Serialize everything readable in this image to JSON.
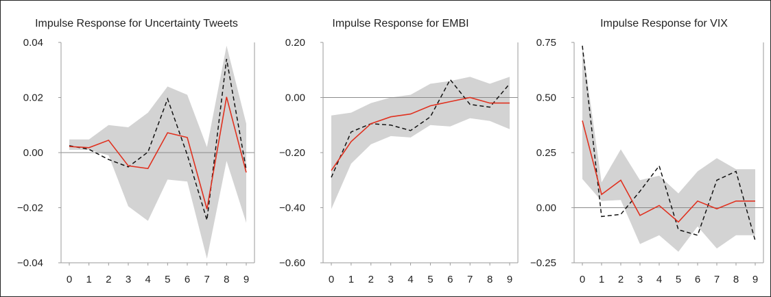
{
  "chart_data": [
    {
      "type": "line",
      "title": "Impulse Response for Uncertainty Tweets",
      "x": [
        0,
        1,
        2,
        3,
        4,
        5,
        6,
        7,
        8,
        9
      ],
      "ylim": [
        -0.04,
        0.04
      ],
      "yticks": [
        -0.04,
        -0.02,
        0.0,
        0.02,
        0.04
      ],
      "ytick_labels": [
        "−0.04",
        "−0.02",
        "0.00",
        "0.02",
        "0.04"
      ],
      "xtick_labels": [
        "0",
        "1",
        "2",
        "3",
        "4",
        "5",
        "6",
        "7",
        "8",
        "9"
      ],
      "grid": false,
      "series": [
        {
          "role": "response",
          "style": "solid",
          "color": "#e0301e",
          "values": [
            0.0022,
            0.0018,
            0.0045,
            -0.0048,
            -0.0058,
            0.0072,
            0.0055,
            -0.0205,
            0.0202,
            -0.0072
          ]
        },
        {
          "role": "comparison",
          "style": "dashed",
          "color": "#111111",
          "values": [
            0.0025,
            0.0012,
            -0.0025,
            -0.0052,
            0.0002,
            0.0195,
            -0.0008,
            -0.0245,
            0.034,
            -0.0062
          ]
        },
        {
          "role": "band_upper",
          "style": "fill",
          "color": "#d3d3d3",
          "values": [
            0.0048,
            0.0048,
            0.01,
            0.0092,
            0.0145,
            0.024,
            0.021,
            0.002,
            0.0388,
            0.0105
          ]
        },
        {
          "role": "band_lower",
          "style": "fill",
          "color": "#d3d3d3",
          "values": [
            0.001,
            0.001,
            -0.001,
            -0.0195,
            -0.0248,
            -0.0098,
            -0.0105,
            -0.0385,
            -0.003,
            -0.0255
          ]
        }
      ]
    },
    {
      "type": "line",
      "title": "Impulse Response for EMBI",
      "x": [
        0,
        1,
        2,
        3,
        4,
        5,
        6,
        7,
        8,
        9
      ],
      "ylim": [
        -0.6,
        0.2
      ],
      "yticks": [
        -0.6,
        -0.4,
        -0.2,
        0.0,
        0.2
      ],
      "ytick_labels": [
        "−0.60",
        "−0.40",
        "−0.20",
        "0.00",
        "0.20"
      ],
      "xtick_labels": [
        "0",
        "1",
        "2",
        "3",
        "4",
        "5",
        "6",
        "7",
        "8",
        "9"
      ],
      "grid": false,
      "series": [
        {
          "role": "response",
          "style": "solid",
          "color": "#e0301e",
          "values": [
            -0.265,
            -0.16,
            -0.095,
            -0.07,
            -0.06,
            -0.03,
            -0.015,
            0.0,
            -0.02,
            -0.02
          ]
        },
        {
          "role": "comparison",
          "style": "dashed",
          "color": "#111111",
          "values": [
            -0.29,
            -0.125,
            -0.095,
            -0.1,
            -0.12,
            -0.07,
            0.065,
            -0.025,
            -0.035,
            0.05
          ]
        },
        {
          "role": "band_upper",
          "style": "fill",
          "color": "#d3d3d3",
          "values": [
            -0.065,
            -0.055,
            -0.02,
            0.0,
            0.01,
            0.05,
            0.06,
            0.075,
            0.05,
            0.075
          ]
        },
        {
          "role": "band_lower",
          "style": "fill",
          "color": "#d3d3d3",
          "values": [
            -0.405,
            -0.24,
            -0.17,
            -0.14,
            -0.145,
            -0.1,
            -0.105,
            -0.075,
            -0.085,
            -0.115
          ]
        }
      ]
    },
    {
      "type": "line",
      "title": "Impulse Response for VIX",
      "x": [
        0,
        1,
        2,
        3,
        4,
        5,
        6,
        7,
        8,
        9
      ],
      "ylim": [
        -0.25,
        0.75
      ],
      "yticks": [
        -0.25,
        0.0,
        0.25,
        0.5,
        0.75
      ],
      "ytick_labels": [
        "−0.25",
        "0.00",
        "0.25",
        "0.50",
        "0.75"
      ],
      "xtick_labels": [
        "0",
        "1",
        "2",
        "3",
        "4",
        "5",
        "6",
        "7",
        "8",
        "9"
      ],
      "grid": false,
      "series": [
        {
          "role": "response",
          "style": "solid",
          "color": "#e0301e",
          "values": [
            0.395,
            0.06,
            0.125,
            -0.035,
            0.01,
            -0.065,
            0.03,
            -0.005,
            0.03,
            0.03
          ]
        },
        {
          "role": "comparison",
          "style": "dashed",
          "color": "#111111",
          "values": [
            0.735,
            -0.04,
            -0.03,
            0.075,
            0.19,
            -0.1,
            -0.125,
            0.125,
            0.165,
            -0.15
          ]
        },
        {
          "role": "band_upper",
          "style": "fill",
          "color": "#d3d3d3",
          "values": [
            0.74,
            0.115,
            0.265,
            0.125,
            0.145,
            0.065,
            0.165,
            0.225,
            0.175,
            0.175
          ]
        },
        {
          "role": "band_lower",
          "style": "fill",
          "color": "#d3d3d3",
          "values": [
            0.13,
            0.03,
            0.035,
            -0.165,
            -0.125,
            -0.2,
            -0.085,
            -0.185,
            -0.125,
            -0.125
          ]
        }
      ]
    }
  ]
}
